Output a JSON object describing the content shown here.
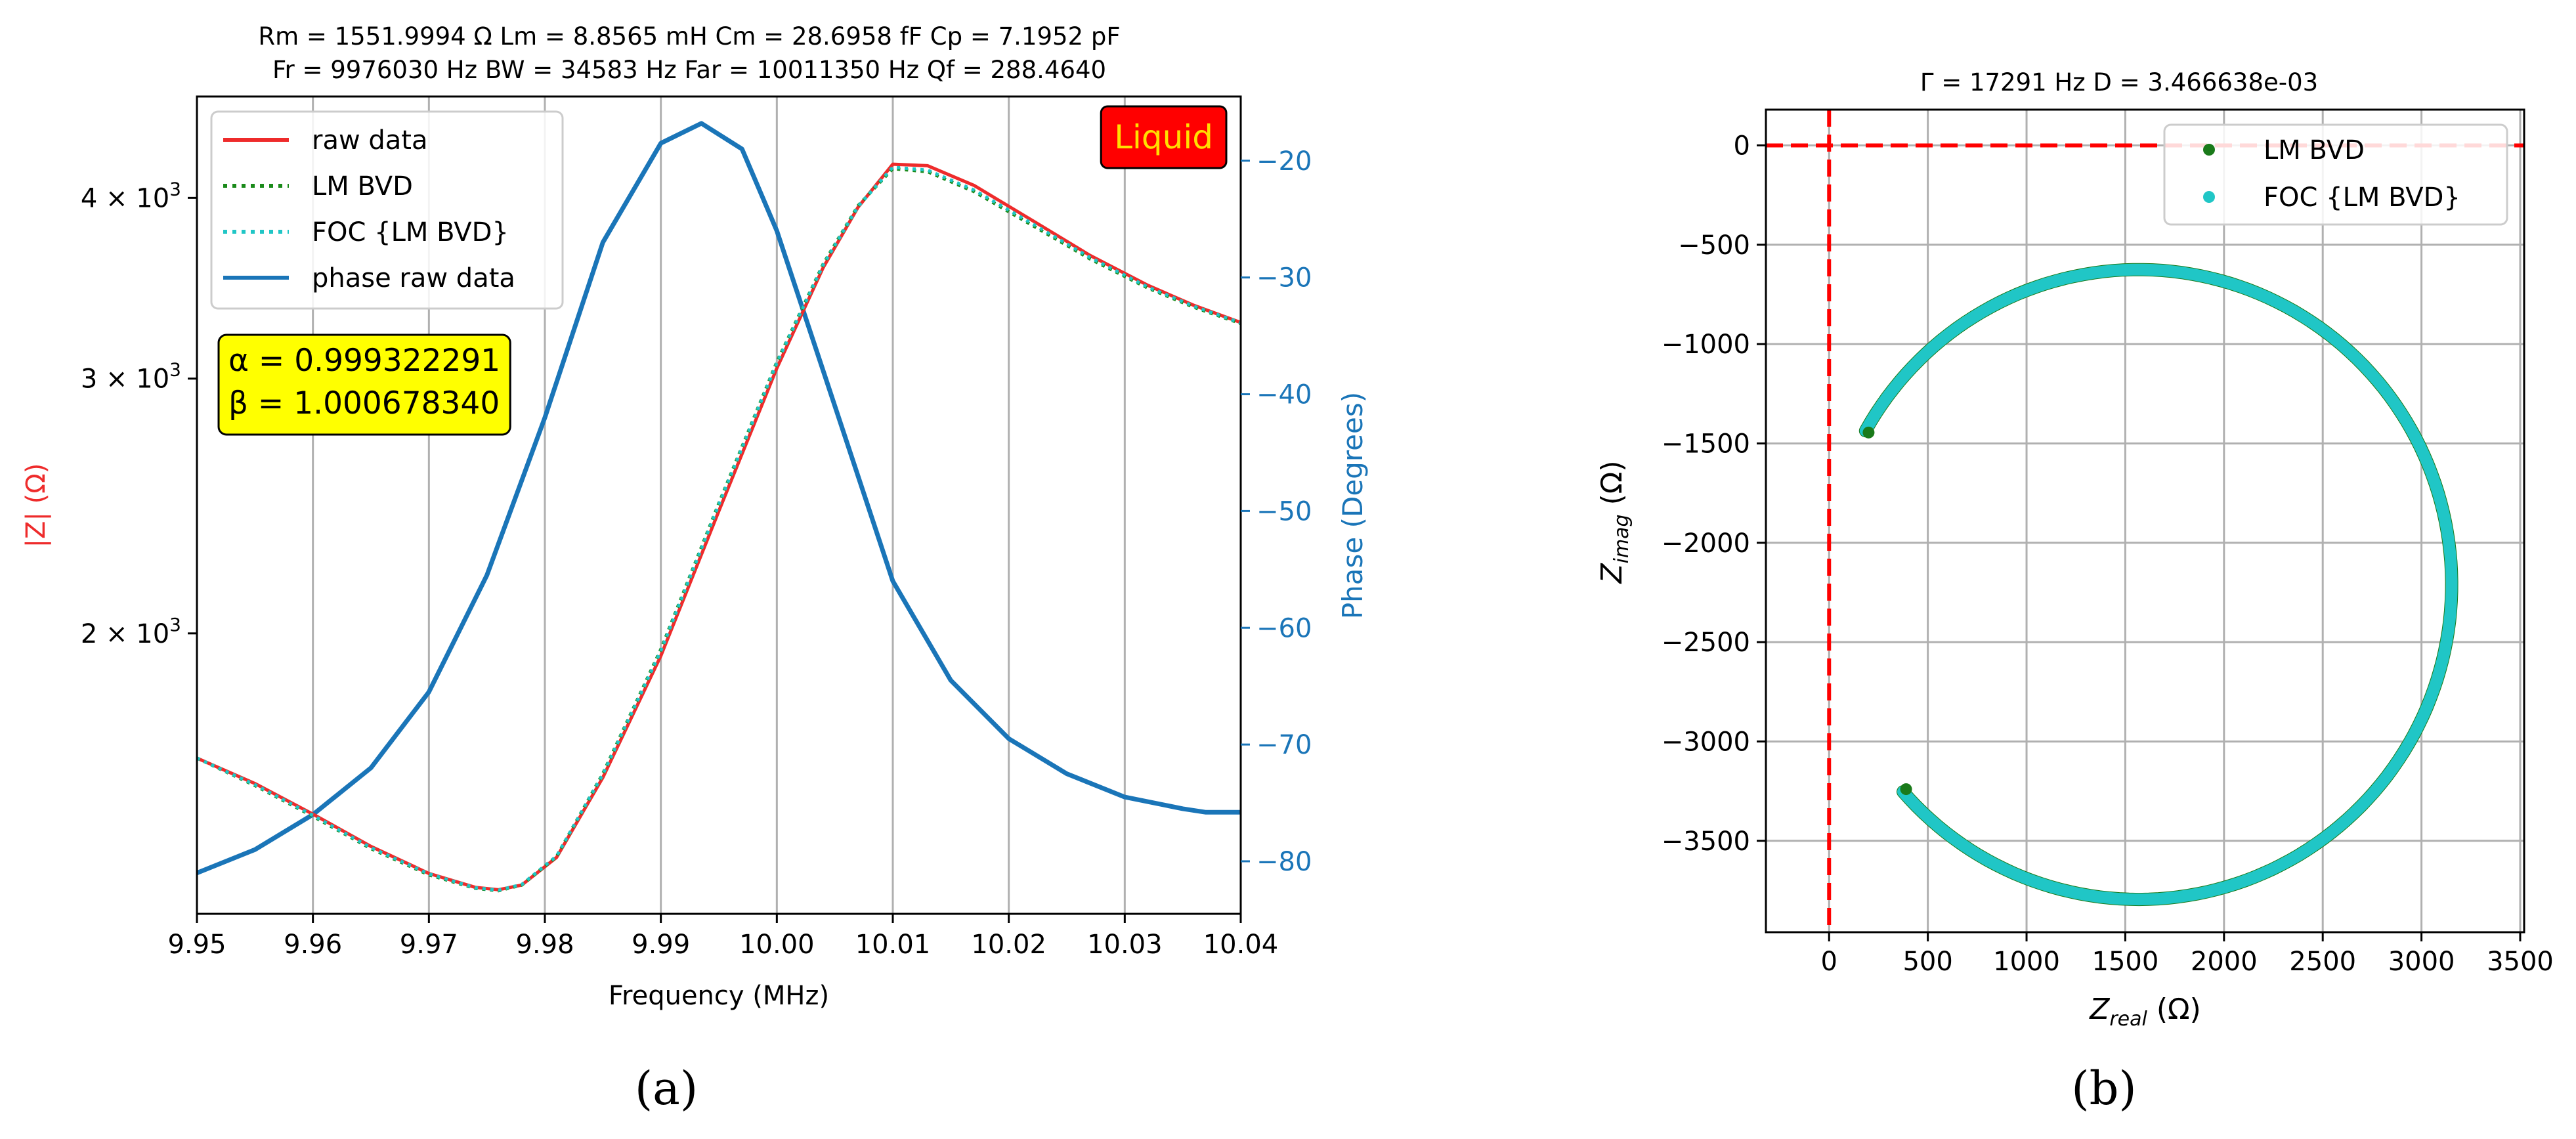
{
  "chart_data": [
    {
      "panel_label": "(a)",
      "type": "line",
      "title_line1": "Rm = 1551.9994 Ω    Lm = 8.8565 mH    Cm = 28.6958 fF    Cp = 7.1952 pF",
      "title_line2": "Fr = 9976030 Hz   BW = 34583 Hz   Far = 10011350 Hz   Qf = 288.4640",
      "xlabel": "Frequency (MHz)",
      "ylabel_left": "|Z| (Ω)",
      "ylabel_right": "Phase (Degrees)",
      "xlim": [
        9.95,
        10.04
      ],
      "ylim_left": [
        1280,
        4700
      ],
      "ylim_left_scale": "log",
      "ylim_right": [
        -84.5,
        -14.5
      ],
      "x_ticks": [
        9.95,
        9.96,
        9.97,
        9.98,
        9.99,
        10.0,
        10.01,
        10.02,
        10.03,
        10.04
      ],
      "x_tick_labels": [
        "9.95",
        "9.96",
        "9.97",
        "9.98",
        "9.99",
        "10.00",
        "10.01",
        "10.02",
        "10.03",
        "10.04"
      ],
      "left_ticks": [
        {
          "value": 4000,
          "base": "4 × 10",
          "exp": "3"
        },
        {
          "value": 3000,
          "base": "3 × 10",
          "exp": "3"
        },
        {
          "value": 2000,
          "base": "2 × 10",
          "exp": "3"
        }
      ],
      "right_ticks": [
        -20,
        -30,
        -40,
        -50,
        -60,
        -70,
        -80
      ],
      "right_tick_labels": [
        "−20",
        "−30",
        "−40",
        "−50",
        "−60",
        "−70",
        "−80"
      ],
      "grid": "vertical",
      "legend_position": "upper-left",
      "series": [
        {
          "name": "raw data",
          "axis": "left",
          "color": "#ee2b2b",
          "style": "solid",
          "x": [
            9.95,
            9.955,
            9.96,
            9.965,
            9.97,
            9.974,
            9.976,
            9.978,
            9.981,
            9.985,
            9.99,
            9.995,
            10.0,
            10.004,
            10.007,
            10.01,
            10.013,
            10.017,
            10.022,
            10.027,
            10.032,
            10.036,
            10.04
          ],
          "y": [
            1640,
            1575,
            1500,
            1425,
            1365,
            1335,
            1330,
            1340,
            1400,
            1590,
            1930,
            2430,
            3050,
            3580,
            3940,
            4220,
            4210,
            4080,
            3860,
            3650,
            3480,
            3370,
            3280
          ]
        },
        {
          "name": "LM BVD",
          "axis": "left",
          "color": "#1a8a1a",
          "style": "dotted",
          "x": [
            9.95,
            9.955,
            9.96,
            9.965,
            9.97,
            9.974,
            9.976,
            9.978,
            9.981,
            9.985,
            9.99,
            9.995,
            10.0,
            10.004,
            10.007,
            10.01,
            10.013,
            10.017,
            10.022,
            10.027,
            10.032,
            10.036,
            10.04
          ],
          "y": [
            1640,
            1570,
            1495,
            1420,
            1362,
            1333,
            1328,
            1340,
            1402,
            1600,
            1950,
            2460,
            3080,
            3600,
            3950,
            4190,
            4170,
            4040,
            3830,
            3630,
            3465,
            3360,
            3275
          ]
        },
        {
          "name": "FOC {LM BVD}",
          "axis": "left",
          "color": "#20c6c6",
          "style": "dotted",
          "x": [
            9.95,
            9.955,
            9.96,
            9.965,
            9.97,
            9.974,
            9.976,
            9.978,
            9.981,
            9.985,
            9.99,
            9.995,
            10.0,
            10.004,
            10.007,
            10.01,
            10.013,
            10.017,
            10.022,
            10.027,
            10.032,
            10.036,
            10.04
          ],
          "y": [
            1640,
            1572,
            1497,
            1422,
            1364,
            1334,
            1329,
            1341,
            1403,
            1598,
            1945,
            2455,
            3075,
            3595,
            3945,
            4200,
            4180,
            4050,
            3840,
            3638,
            3470,
            3365,
            3278
          ]
        },
        {
          "name": "phase raw data",
          "axis": "right",
          "color": "#1a75b8",
          "style": "solid",
          "x": [
            9.95,
            9.955,
            9.96,
            9.965,
            9.97,
            9.975,
            9.98,
            9.985,
            9.99,
            9.9935,
            9.997,
            10.0,
            10.005,
            10.01,
            10.015,
            10.02,
            10.025,
            10.03,
            10.035,
            10.037,
            10.04
          ],
          "y": [
            -81,
            -79,
            -76,
            -72,
            -65.5,
            -55.5,
            -42,
            -27,
            -18.5,
            -16.8,
            -19,
            -26,
            -41,
            -56,
            -64.5,
            -69.5,
            -72.5,
            -74.5,
            -75.5,
            -75.8,
            -75.8
          ]
        }
      ],
      "annotations": {
        "params_box": {
          "alpha_text": "α = 0.999322291",
          "beta_text": "β = 1.000678340",
          "color": "#ffff00"
        },
        "condition_box": {
          "text": "Liquid",
          "color": "#ff0000",
          "text_color": "#ffe000"
        }
      }
    },
    {
      "panel_label": "(b)",
      "type": "scatter",
      "title": "Γ = 17291 Hz      D = 3.466638e-03",
      "xlabel_main": "Z",
      "xlabel_sub": "real",
      "xlabel_unit": " (Ω)",
      "ylabel_main": "Z",
      "ylabel_sub": "imag",
      "ylabel_unit": " (Ω)",
      "xlim": [
        -320,
        3520
      ],
      "ylim": [
        -3960,
        180
      ],
      "x_ticks": [
        0,
        500,
        1000,
        1500,
        2000,
        2500,
        3000,
        3500
      ],
      "x_tick_labels": [
        "0",
        "500",
        "1000",
        "1500",
        "2000",
        "2500",
        "3000",
        "3500"
      ],
      "y_ticks": [
        0,
        -500,
        -1000,
        -1500,
        -2000,
        -2500,
        -3000,
        -3500
      ],
      "y_tick_labels": [
        "0",
        "−500",
        "−1000",
        "−1500",
        "−2000",
        "−2500",
        "−3000",
        "−3500"
      ],
      "grid": true,
      "legend_position": "upper-right",
      "reference_lines": {
        "x": 0,
        "y": 0,
        "color": "#ff0000",
        "style": "dashed"
      },
      "arc": {
        "center": [
          1568,
          -2210
        ],
        "radius": 1585,
        "start_point": [
          200,
          -1445
        ],
        "end_point": [
          390,
          -3240
        ]
      },
      "series": [
        {
          "name": "LM BVD",
          "color": "#1a7a1a"
        },
        {
          "name": "FOC {LM BVD}",
          "color": "#20c6c6"
        }
      ]
    }
  ]
}
